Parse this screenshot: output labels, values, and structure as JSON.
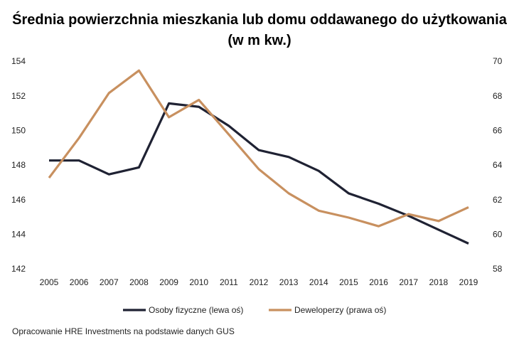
{
  "chart_data": {
    "type": "line",
    "title": "Średnia powierzchnia mieszkania lub domu oddawanego do użytkowania (w m kw.)",
    "categories": [
      "2005",
      "2006",
      "2007",
      "2008",
      "2009",
      "2010",
      "2011",
      "2012",
      "2013",
      "2014",
      "2015",
      "2016",
      "2017",
      "2018",
      "2019"
    ],
    "series": [
      {
        "name": "Osoby fizyczne (lewa oś)",
        "color": "#1f2233",
        "axis": "y",
        "values": [
          148.3,
          148.3,
          147.5,
          147.9,
          151.6,
          151.4,
          150.3,
          148.9,
          148.5,
          147.7,
          146.4,
          145.8,
          145.1,
          144.3,
          143.5
        ]
      },
      {
        "name": "Deweloperzy (prawa oś)",
        "color": "#c8905f",
        "axis": "y2",
        "values": [
          63.3,
          65.6,
          68.2,
          69.5,
          66.8,
          67.8,
          65.8,
          63.8,
          62.4,
          61.4,
          61.0,
          60.5,
          61.2,
          60.8,
          61.6
        ]
      }
    ],
    "ylim": [
      142,
      154
    ],
    "yticks": [
      142,
      144,
      146,
      148,
      150,
      152,
      154
    ],
    "y2lim": [
      58,
      70
    ],
    "y2ticks": [
      58,
      60,
      62,
      64,
      66,
      68,
      70
    ],
    "grid": false,
    "legend": "bottom",
    "source": "Opracowanie HRE Investments na podstawie danych GUS"
  }
}
